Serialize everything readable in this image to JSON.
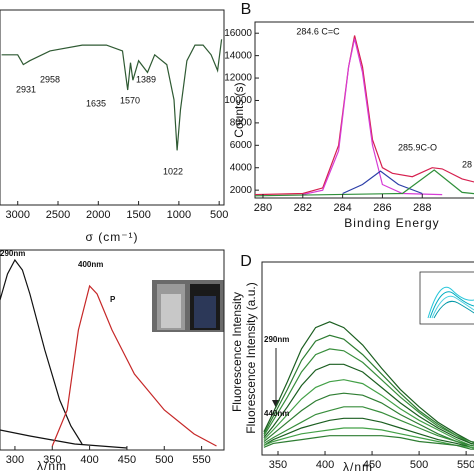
{
  "chart_data": [
    {
      "type": "line",
      "xlabel": "σ (cm⁻¹)",
      "xlim": [
        3220,
        440
      ],
      "xticks": [
        3000,
        2500,
        2000,
        1500,
        1000,
        500
      ],
      "ylim": [
        0,
        100
      ],
      "annotations": [
        "2958",
        "2931",
        "1635",
        "1570",
        "1389",
        "1022"
      ],
      "series": [
        {
          "color": "#2f5a33",
          "x": [
            3200,
            3000,
            2958,
            2931,
            2850,
            2600,
            2200,
            1900,
            1700,
            1635,
            1600,
            1570,
            1500,
            1389,
            1300,
            1150,
            1060,
            1022,
            980,
            900,
            800,
            700,
            600,
            520,
            470
          ],
          "values": [
            77,
            77,
            74,
            72,
            74,
            79,
            82,
            82,
            79,
            59,
            73,
            64,
            74,
            68,
            77,
            72,
            54,
            28,
            49,
            74,
            82,
            82,
            77,
            69,
            85
          ]
        }
      ]
    },
    {
      "type": "line",
      "label": "B",
      "xlabel": "Binding Energy",
      "ylabel": "Counts (s)",
      "xlim": [
        279.6,
        291.1
      ],
      "xticks": [
        280,
        282,
        284,
        286,
        288
      ],
      "ylim": [
        1300,
        17000
      ],
      "yticks": [
        2000,
        4000,
        6000,
        8000,
        10000,
        12000,
        14000,
        16000
      ],
      "annotations": [
        "284.6 C=C",
        "285.9C-O",
        "28"
      ],
      "series": [
        {
          "color": "#d6204f",
          "x": [
            279.6,
            282,
            283,
            283.8,
            284.3,
            284.6,
            285,
            285.5,
            286,
            286.5,
            287.5,
            288.5,
            289,
            290,
            291.1
          ],
          "values": [
            1600,
            1700,
            2200,
            6000,
            13000,
            15800,
            13000,
            6500,
            4000,
            3500,
            3200,
            4000,
            3900,
            3000,
            2500
          ]
        },
        {
          "color": "#d63cd6",
          "x": [
            282,
            283,
            283.8,
            284.3,
            284.6,
            285,
            285.5,
            286,
            287,
            289
          ],
          "values": [
            1600,
            2000,
            5500,
            13000,
            15500,
            12500,
            6000,
            2500,
            1700,
            1600
          ]
        },
        {
          "color": "#2c3ea8",
          "x": [
            284,
            285,
            285.9,
            286.8,
            288
          ],
          "values": [
            1700,
            2500,
            3700,
            2500,
            1700
          ]
        },
        {
          "color": "#2f8f3a",
          "x": [
            279.6,
            287,
            288.6,
            290,
            291.1
          ],
          "values": [
            1500,
            1700,
            3800,
            1800,
            1600
          ]
        }
      ]
    },
    {
      "type": "line",
      "xlabel": "λ/nm",
      "ylabel": "Fluorescence Intensity",
      "xlim": [
        280,
        580
      ],
      "xticks": [
        300,
        350,
        400,
        450,
        500,
        550
      ],
      "ylim": [
        0,
        100
      ],
      "annotations": [
        "290nm",
        "400nm",
        "P"
      ],
      "series": [
        {
          "color": "#111111",
          "x": [
            280,
            290,
            300,
            310,
            320,
            340,
            360,
            375,
            390
          ],
          "values": [
            75,
            88,
            95,
            90,
            78,
            50,
            25,
            12,
            3
          ]
        },
        {
          "color": "#111111",
          "x": [
            280,
            320,
            380,
            450
          ],
          "values": [
            10,
            7,
            3,
            1
          ]
        },
        {
          "color": "#c62828",
          "x": [
            350,
            370,
            385,
            400,
            410,
            430,
            460,
            500,
            540,
            570
          ],
          "values": [
            2,
            20,
            60,
            82,
            78,
            60,
            38,
            20,
            8,
            2
          ]
        }
      ]
    },
    {
      "type": "line",
      "label": "D",
      "xlabel": "λ/nm",
      "ylabel": "Fluorescence Intensity (a.u.)",
      "xlim": [
        333,
        569
      ],
      "xticks": [
        350,
        400,
        450,
        500,
        550
      ],
      "ylim": [
        0,
        100
      ],
      "annotations": [
        "290nm",
        "440nm"
      ],
      "series": [
        {
          "color": "#1b5e20",
          "x": [
            335,
            345,
            360,
            375,
            390,
            405,
            420,
            440,
            460,
            480,
            500,
            520,
            540,
            555,
            565
          ],
          "values": [
            12,
            22,
            38,
            55,
            66,
            69,
            66,
            57,
            45,
            34,
            25,
            17,
            11,
            7,
            6
          ]
        },
        {
          "color": "#2e7d32",
          "x": [
            335,
            345,
            360,
            375,
            390,
            405,
            420,
            440,
            460,
            480,
            500,
            520,
            540,
            555,
            565
          ],
          "values": [
            11,
            20,
            34,
            49,
            59,
            62,
            60,
            52,
            42,
            32,
            23,
            16,
            10,
            7,
            5
          ]
        },
        {
          "color": "#388e3c",
          "x": [
            335,
            345,
            360,
            375,
            390,
            405,
            420,
            440,
            460,
            480,
            500,
            520,
            540,
            555,
            565
          ],
          "values": [
            10,
            18,
            30,
            43,
            52,
            55,
            54,
            48,
            39,
            30,
            22,
            15,
            10,
            6,
            5
          ]
        },
        {
          "color": "#1b5e20",
          "x": [
            335,
            345,
            360,
            375,
            390,
            405,
            420,
            440,
            460,
            480,
            500,
            520,
            540,
            555,
            565
          ],
          "values": [
            9,
            15,
            25,
            36,
            44,
            47,
            47,
            43,
            35,
            27,
            20,
            14,
            9,
            6,
            5
          ]
        },
        {
          "color": "#43a047",
          "x": [
            335,
            345,
            360,
            375,
            390,
            405,
            420,
            440,
            460,
            480,
            500,
            520,
            540,
            555,
            565
          ],
          "values": [
            8,
            13,
            21,
            29,
            35,
            38,
            39,
            37,
            31,
            24,
            18,
            13,
            8,
            5,
            4
          ]
        },
        {
          "color": "#2e7d32",
          "x": [
            335,
            345,
            360,
            375,
            390,
            405,
            420,
            440,
            460,
            480,
            500,
            520,
            540,
            555,
            565
          ],
          "values": [
            7,
            11,
            17,
            23,
            28,
            31,
            32,
            31,
            27,
            21,
            16,
            11,
            7,
            5,
            4
          ]
        },
        {
          "color": "#388e3c",
          "x": [
            335,
            345,
            360,
            375,
            390,
            405,
            420,
            440,
            460,
            480,
            500,
            520,
            540,
            555,
            565
          ],
          "values": [
            6,
            9,
            13,
            17,
            21,
            23,
            25,
            25,
            22,
            18,
            14,
            10,
            7,
            4,
            3
          ]
        },
        {
          "color": "#1b5e20",
          "x": [
            335,
            345,
            360,
            375,
            390,
            405,
            420,
            440,
            460,
            480,
            500,
            520,
            540,
            555,
            565
          ],
          "values": [
            5,
            8,
            11,
            14,
            16,
            18,
            19,
            19,
            17,
            14,
            11,
            8,
            6,
            4,
            3
          ]
        },
        {
          "color": "#43a047",
          "x": [
            335,
            345,
            360,
            375,
            390,
            405,
            420,
            440,
            460,
            480,
            500,
            520,
            540,
            555,
            565
          ],
          "values": [
            5,
            7,
            9,
            11,
            12,
            13,
            14,
            14,
            13,
            11,
            9,
            7,
            5,
            4,
            3
          ]
        },
        {
          "color": "#2e7d32",
          "x": [
            335,
            345,
            360,
            375,
            390,
            405,
            420,
            440,
            460,
            480,
            500,
            520,
            540,
            555,
            565
          ],
          "values": [
            4,
            6,
            7,
            8,
            9,
            10,
            10,
            10,
            10,
            9,
            7,
            6,
            5,
            3,
            3
          ]
        }
      ]
    }
  ]
}
